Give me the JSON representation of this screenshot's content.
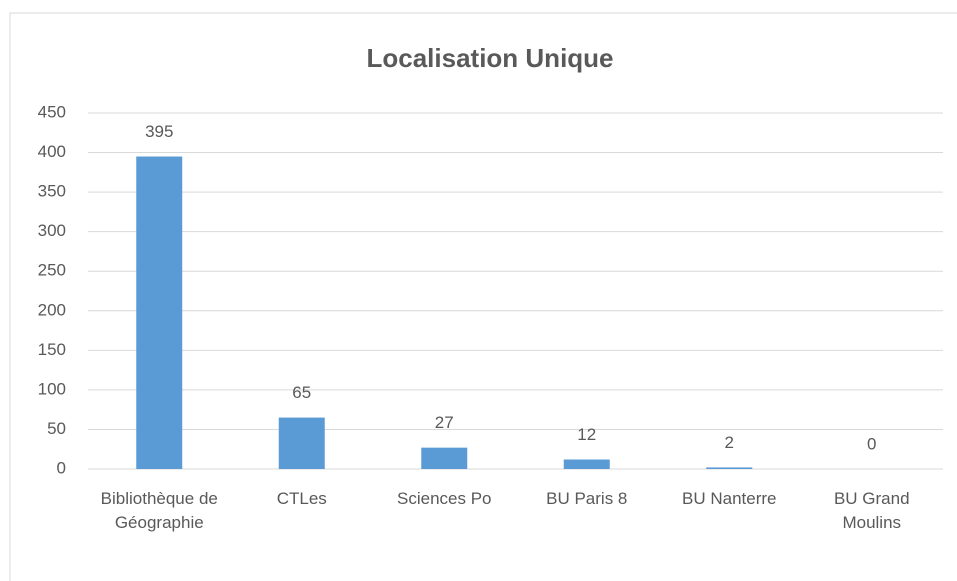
{
  "chart_data": {
    "type": "bar",
    "title": "Localisation Unique",
    "categories": [
      "Bibliothèque de Géographie",
      "CTLes",
      "Sciences Po",
      "BU Paris 8",
      "BU Nanterre",
      "BU Grand Moulins"
    ],
    "values": [
      395,
      65,
      27,
      12,
      2,
      0
    ],
    "color": "#5b9bd5",
    "ylim": [
      0,
      450
    ],
    "yticks": [
      0,
      50,
      100,
      150,
      200,
      250,
      300,
      350,
      400,
      450
    ],
    "grid": true
  }
}
